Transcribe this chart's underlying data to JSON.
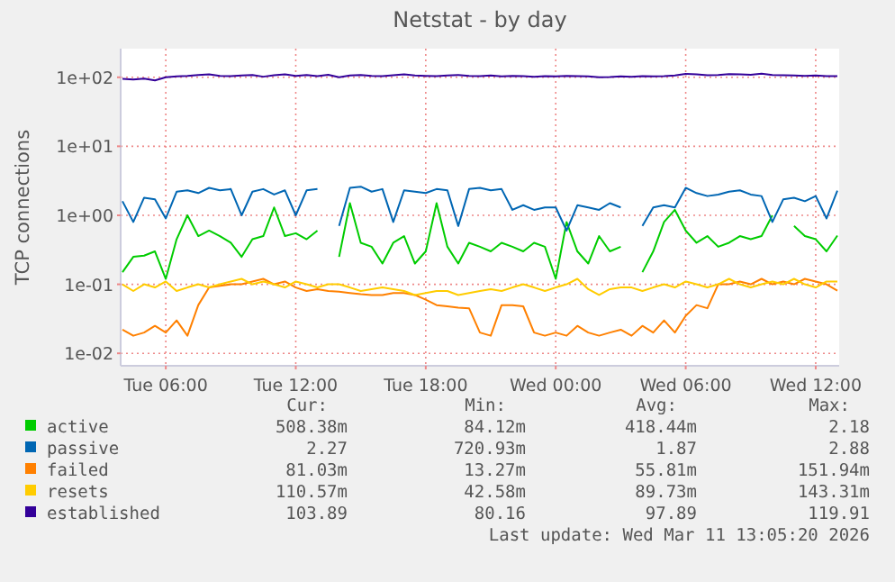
{
  "chart_data": {
    "type": "line",
    "title": "Netstat - by day",
    "ylabel": "TCP connections",
    "log": "y",
    "grid": true,
    "legend": "bottom",
    "x": [
      "2026-03-10T04:00",
      "2026-03-10T04:30",
      "2026-03-10T05:00",
      "2026-03-10T05:30",
      "2026-03-10T06:00",
      "2026-03-10T06:30",
      "2026-03-10T07:00",
      "2026-03-10T07:30",
      "2026-03-10T08:00",
      "2026-03-10T08:30",
      "2026-03-10T09:00",
      "2026-03-10T09:30",
      "2026-03-10T10:00",
      "2026-03-10T10:30",
      "2026-03-10T11:00",
      "2026-03-10T11:30",
      "2026-03-10T12:00",
      "2026-03-10T12:30",
      "2026-03-10T13:00",
      "2026-03-10T13:30",
      "2026-03-10T14:00",
      "2026-03-10T14:30",
      "2026-03-10T15:00",
      "2026-03-10T15:30",
      "2026-03-10T16:00",
      "2026-03-10T16:30",
      "2026-03-10T17:00",
      "2026-03-10T17:30",
      "2026-03-10T18:00",
      "2026-03-10T18:30",
      "2026-03-10T19:00",
      "2026-03-10T19:30",
      "2026-03-10T20:00",
      "2026-03-10T20:30",
      "2026-03-10T21:00",
      "2026-03-10T21:30",
      "2026-03-10T22:00",
      "2026-03-10T22:30",
      "2026-03-10T23:00",
      "2026-03-10T23:30",
      "2026-03-11T00:00",
      "2026-03-11T00:30",
      "2026-03-11T01:00",
      "2026-03-11T01:30",
      "2026-03-11T02:00",
      "2026-03-11T02:30",
      "2026-03-11T03:00",
      "2026-03-11T03:30",
      "2026-03-11T04:00",
      "2026-03-11T04:30",
      "2026-03-11T05:00",
      "2026-03-11T05:30",
      "2026-03-11T06:00",
      "2026-03-11T06:30",
      "2026-03-11T07:00",
      "2026-03-11T07:30",
      "2026-03-11T08:00",
      "2026-03-11T08:30",
      "2026-03-11T09:00",
      "2026-03-11T09:30",
      "2026-03-11T10:00",
      "2026-03-11T10:30",
      "2026-03-11T11:00",
      "2026-03-11T11:30",
      "2026-03-11T12:00",
      "2026-03-11T12:30",
      "2026-03-11T13:00"
    ],
    "xlim": [
      "2026-03-10T03:55",
      "2026-03-11T13:05"
    ],
    "xticks": [
      {
        "value": "2026-03-10T06:00",
        "label": "Tue 06:00"
      },
      {
        "value": "2026-03-10T12:00",
        "label": "Tue 12:00"
      },
      {
        "value": "2026-03-10T18:00",
        "label": "Tue 18:00"
      },
      {
        "value": "2026-03-11T00:00",
        "label": "Wed 00:00"
      },
      {
        "value": "2026-03-11T06:00",
        "label": "Wed 06:00"
      },
      {
        "value": "2026-03-11T12:00",
        "label": "Wed 12:00"
      }
    ],
    "ylim": [
      0.0066,
      260
    ],
    "yticks": [
      {
        "value": 0.01,
        "label": "1e-02"
      },
      {
        "value": 0.1,
        "label": "1e-01"
      },
      {
        "value": 1,
        "label": "1e+00"
      },
      {
        "value": 10,
        "label": "1e+01"
      },
      {
        "value": 100,
        "label": "1e+02"
      }
    ],
    "series": [
      {
        "name": "active",
        "color": "#00cc00",
        "values": [
          0.15,
          0.25,
          0.26,
          0.3,
          0.12,
          0.45,
          1.0,
          0.5,
          0.6,
          0.5,
          0.4,
          0.25,
          0.45,
          0.5,
          1.3,
          0.5,
          0.55,
          0.45,
          0.6,
          null,
          0.25,
          1.5,
          0.4,
          0.35,
          0.2,
          0.4,
          0.5,
          0.2,
          0.3,
          1.5,
          0.35,
          0.2,
          0.4,
          0.35,
          0.3,
          0.4,
          0.35,
          0.3,
          0.4,
          0.35,
          0.12,
          0.8,
          0.3,
          0.2,
          0.5,
          0.3,
          0.35,
          null,
          0.15,
          0.3,
          0.8,
          1.2,
          0.6,
          0.4,
          0.5,
          0.35,
          0.4,
          0.5,
          0.45,
          0.5,
          1.0,
          null,
          0.7,
          0.5,
          0.45,
          0.3,
          0.508
        ]
      },
      {
        "name": "passive",
        "color": "#0066b3",
        "values": [
          1.6,
          0.8,
          1.8,
          1.7,
          0.9,
          2.2,
          2.3,
          2.1,
          2.5,
          2.3,
          2.4,
          1.0,
          2.2,
          2.4,
          2.0,
          2.3,
          1.0,
          2.3,
          2.4,
          null,
          0.7,
          2.5,
          2.6,
          2.2,
          2.4,
          0.8,
          2.3,
          2.2,
          2.1,
          2.4,
          2.3,
          0.7,
          2.4,
          2.5,
          2.3,
          2.4,
          1.2,
          1.4,
          1.2,
          1.3,
          1.3,
          0.6,
          1.4,
          1.3,
          1.2,
          1.5,
          1.3,
          null,
          0.7,
          1.3,
          1.4,
          1.3,
          2.5,
          2.1,
          1.9,
          2.0,
          2.2,
          2.3,
          2.0,
          1.9,
          0.8,
          1.7,
          1.8,
          1.6,
          1.9,
          0.9,
          2.27
        ]
      },
      {
        "name": "failed",
        "color": "#ff8000",
        "values": [
          0.022,
          0.018,
          0.02,
          0.025,
          0.02,
          0.03,
          0.018,
          0.05,
          0.09,
          0.095,
          0.1,
          0.1,
          0.11,
          0.12,
          0.1,
          0.11,
          0.09,
          0.08,
          0.085,
          0.08,
          0.078,
          0.075,
          0.072,
          0.07,
          0.07,
          0.075,
          0.075,
          0.07,
          0.06,
          0.05,
          0.048,
          0.046,
          0.045,
          0.02,
          0.018,
          0.05,
          0.05,
          0.048,
          0.02,
          0.018,
          0.02,
          0.018,
          0.025,
          0.02,
          0.018,
          0.02,
          0.022,
          0.018,
          0.025,
          0.02,
          0.03,
          0.02,
          0.035,
          0.05,
          0.045,
          0.1,
          0.1,
          0.11,
          0.1,
          0.12,
          0.1,
          0.11,
          0.1,
          0.12,
          0.11,
          0.1,
          0.081
        ]
      },
      {
        "name": "resets",
        "color": "#ffcc00",
        "values": [
          0.1,
          0.08,
          0.1,
          0.09,
          0.11,
          0.08,
          0.09,
          0.1,
          0.09,
          0.1,
          0.11,
          0.12,
          0.1,
          0.11,
          0.1,
          0.09,
          0.11,
          0.1,
          0.09,
          0.1,
          0.1,
          0.09,
          0.08,
          0.085,
          0.09,
          0.085,
          0.08,
          0.07,
          0.075,
          0.08,
          0.08,
          0.07,
          0.075,
          0.08,
          0.085,
          0.08,
          0.09,
          0.1,
          0.09,
          0.08,
          0.09,
          0.1,
          0.12,
          0.085,
          0.07,
          0.085,
          0.09,
          0.09,
          0.08,
          0.09,
          0.1,
          0.09,
          0.11,
          0.1,
          0.09,
          0.1,
          0.12,
          0.1,
          0.09,
          0.1,
          0.11,
          0.1,
          0.12,
          0.1,
          0.09,
          0.11,
          0.11
        ]
      },
      {
        "name": "established",
        "color": "#330099",
        "values": [
          95,
          93,
          96,
          90,
          100,
          103,
          105,
          108,
          110,
          105,
          104,
          106,
          108,
          102,
          107,
          110,
          105,
          108,
          104,
          109,
          100,
          106,
          108,
          105,
          104,
          107,
          110,
          106,
          105,
          104,
          106,
          108,
          105,
          104,
          106,
          103,
          105,
          104,
          102,
          104,
          103,
          105,
          104,
          103,
          100,
          101,
          103,
          102,
          104,
          103,
          104,
          106,
          112,
          110,
          107,
          108,
          111,
          110,
          109,
          113,
          108,
          107,
          106,
          105,
          106,
          104,
          103.89
        ]
      }
    ],
    "annotations": [
      "Cur:",
      "Min:",
      "Avg:",
      "Max:",
      "508.38m",
      "84.12m",
      "418.44m",
      "2.18",
      "2.27",
      "720.93m",
      "1.87",
      "2.88",
      "81.03m",
      "13.27m",
      "55.81m",
      "151.94m",
      "110.57m",
      "42.58m",
      "89.73m",
      "143.31m",
      "103.89",
      "80.16",
      "97.89",
      "119.91",
      "Last update: Wed Mar 11 13:05:20 2026"
    ]
  }
}
